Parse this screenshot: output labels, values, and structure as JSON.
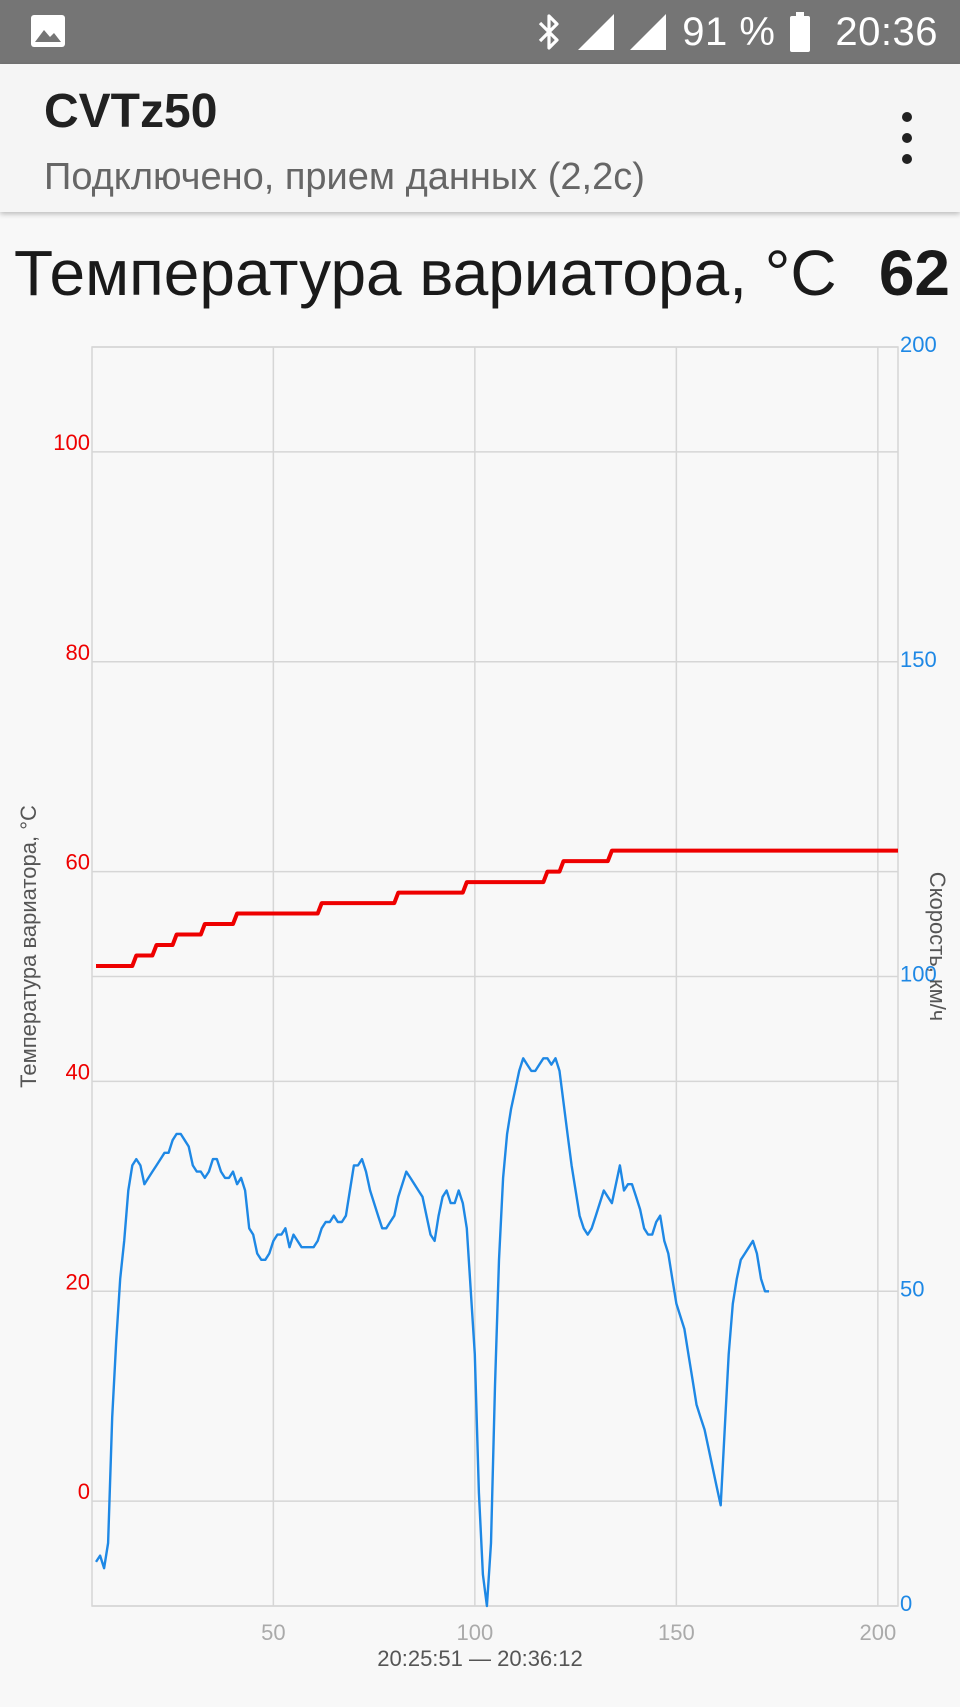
{
  "status_bar": {
    "left_icon": "image-icon",
    "icons": [
      "bluetooth-icon",
      "signal-icon",
      "signal-icon",
      "battery-icon"
    ],
    "battery": "91 %",
    "time": "20:36"
  },
  "app_bar": {
    "title": "CVTz50",
    "subtitle": "Подключено, прием данных (2,2с)",
    "menu_icon": "more-vert-icon"
  },
  "parameter": {
    "label": "Температура вариатора, °C",
    "value": "62"
  },
  "chart_data": {
    "type": "line",
    "title": "",
    "xlabel": "20:25:51 — 20:36:12",
    "x_ticks": [
      50,
      100,
      150,
      200
    ],
    "xlim": [
      5,
      205
    ],
    "grid": true,
    "left_axis": {
      "label": "Температура вариатора, °C",
      "color": "#ee0000",
      "range": [
        -10,
        110
      ],
      "ticks": [
        0,
        20,
        40,
        60,
        80,
        100
      ]
    },
    "right_axis": {
      "label": "Скорость, км/ч",
      "color": "#1e88e5",
      "range": [
        0,
        200
      ],
      "ticks": [
        0,
        50,
        100,
        150,
        200
      ]
    },
    "series": [
      {
        "axis": "left",
        "color": "#ee0000",
        "points": [
          [
            6,
            51
          ],
          [
            15,
            51
          ],
          [
            16,
            52
          ],
          [
            20,
            52
          ],
          [
            21,
            53
          ],
          [
            25,
            53
          ],
          [
            26,
            54
          ],
          [
            32,
            54
          ],
          [
            33,
            55
          ],
          [
            40,
            55
          ],
          [
            41,
            56
          ],
          [
            61,
            56
          ],
          [
            62,
            57
          ],
          [
            80,
            57
          ],
          [
            81,
            58
          ],
          [
            97,
            58
          ],
          [
            98,
            59
          ],
          [
            117,
            59
          ],
          [
            118,
            60
          ],
          [
            121,
            60
          ],
          [
            122,
            61
          ],
          [
            133,
            61
          ],
          [
            134,
            62
          ],
          [
            205,
            62
          ]
        ]
      },
      {
        "axis": "right",
        "color": "#1e88e5",
        "points": [
          [
            6,
            7
          ],
          [
            7,
            8
          ],
          [
            8,
            6
          ],
          [
            9,
            10
          ],
          [
            10,
            30
          ],
          [
            11,
            42
          ],
          [
            12,
            52
          ],
          [
            13,
            58
          ],
          [
            14,
            66
          ],
          [
            15,
            70
          ],
          [
            16,
            71
          ],
          [
            17,
            70
          ],
          [
            18,
            67
          ],
          [
            19,
            68
          ],
          [
            20,
            69
          ],
          [
            21,
            70
          ],
          [
            22,
            71
          ],
          [
            23,
            72
          ],
          [
            24,
            72
          ],
          [
            25,
            74
          ],
          [
            26,
            75
          ],
          [
            27,
            75
          ],
          [
            28,
            74
          ],
          [
            29,
            73
          ],
          [
            30,
            70
          ],
          [
            31,
            69
          ],
          [
            32,
            69
          ],
          [
            33,
            68
          ],
          [
            34,
            69
          ],
          [
            35,
            71
          ],
          [
            36,
            71
          ],
          [
            37,
            69
          ],
          [
            38,
            68
          ],
          [
            39,
            68
          ],
          [
            40,
            69
          ],
          [
            41,
            67
          ],
          [
            42,
            68
          ],
          [
            43,
            66
          ],
          [
            44,
            60
          ],
          [
            45,
            59
          ],
          [
            46,
            56
          ],
          [
            47,
            55
          ],
          [
            48,
            55
          ],
          [
            49,
            56
          ],
          [
            50,
            58
          ],
          [
            51,
            59
          ],
          [
            52,
            59
          ],
          [
            53,
            60
          ],
          [
            54,
            57
          ],
          [
            55,
            59
          ],
          [
            56,
            58
          ],
          [
            57,
            57
          ],
          [
            58,
            57
          ],
          [
            59,
            57
          ],
          [
            60,
            57
          ],
          [
            61,
            58
          ],
          [
            62,
            60
          ],
          [
            63,
            61
          ],
          [
            64,
            61
          ],
          [
            65,
            62
          ],
          [
            66,
            61
          ],
          [
            67,
            61
          ],
          [
            68,
            62
          ],
          [
            69,
            66
          ],
          [
            70,
            70
          ],
          [
            71,
            70
          ],
          [
            72,
            71
          ],
          [
            73,
            69
          ],
          [
            74,
            66
          ],
          [
            75,
            64
          ],
          [
            76,
            62
          ],
          [
            77,
            60
          ],
          [
            78,
            60
          ],
          [
            79,
            61
          ],
          [
            80,
            62
          ],
          [
            81,
            65
          ],
          [
            82,
            67
          ],
          [
            83,
            69
          ],
          [
            84,
            68
          ],
          [
            85,
            67
          ],
          [
            86,
            66
          ],
          [
            87,
            65
          ],
          [
            88,
            62
          ],
          [
            89,
            59
          ],
          [
            90,
            58
          ],
          [
            91,
            62
          ],
          [
            92,
            65
          ],
          [
            93,
            66
          ],
          [
            94,
            64
          ],
          [
            95,
            64
          ],
          [
            96,
            66
          ],
          [
            97,
            64
          ],
          [
            98,
            60
          ],
          [
            99,
            50
          ],
          [
            100,
            40
          ],
          [
            101,
            18
          ],
          [
            102,
            5
          ],
          [
            103,
            0
          ],
          [
            104,
            10
          ],
          [
            105,
            35
          ],
          [
            106,
            55
          ],
          [
            107,
            68
          ],
          [
            108,
            75
          ],
          [
            109,
            79
          ],
          [
            110,
            82
          ],
          [
            111,
            85
          ],
          [
            112,
            87
          ],
          [
            113,
            86
          ],
          [
            114,
            85
          ],
          [
            115,
            85
          ],
          [
            116,
            86
          ],
          [
            117,
            87
          ],
          [
            118,
            87
          ],
          [
            119,
            86
          ],
          [
            120,
            87
          ],
          [
            121,
            85
          ],
          [
            122,
            80
          ],
          [
            123,
            75
          ],
          [
            124,
            70
          ],
          [
            125,
            66
          ],
          [
            126,
            62
          ],
          [
            127,
            60
          ],
          [
            128,
            59
          ],
          [
            129,
            60
          ],
          [
            130,
            62
          ],
          [
            131,
            64
          ],
          [
            132,
            66
          ],
          [
            133,
            65
          ],
          [
            134,
            64
          ],
          [
            135,
            67
          ],
          [
            136,
            70
          ],
          [
            137,
            66
          ],
          [
            138,
            67
          ],
          [
            139,
            67
          ],
          [
            140,
            65
          ],
          [
            141,
            63
          ],
          [
            142,
            60
          ],
          [
            143,
            59
          ],
          [
            144,
            59
          ],
          [
            145,
            61
          ],
          [
            146,
            62
          ],
          [
            147,
            58
          ],
          [
            148,
            56
          ],
          [
            149,
            52
          ],
          [
            150,
            48
          ],
          [
            151,
            46
          ],
          [
            152,
            44
          ],
          [
            153,
            40
          ],
          [
            154,
            36
          ],
          [
            155,
            32
          ],
          [
            156,
            30
          ],
          [
            157,
            28
          ],
          [
            158,
            25
          ],
          [
            159,
            22
          ],
          [
            160,
            19
          ],
          [
            161,
            16
          ],
          [
            162,
            28
          ],
          [
            163,
            40
          ],
          [
            164,
            48
          ],
          [
            165,
            52
          ],
          [
            166,
            55
          ],
          [
            167,
            56
          ],
          [
            168,
            57
          ],
          [
            169,
            58
          ],
          [
            170,
            56
          ],
          [
            171,
            52
          ],
          [
            172,
            50
          ],
          [
            173,
            50
          ]
        ]
      }
    ]
  }
}
